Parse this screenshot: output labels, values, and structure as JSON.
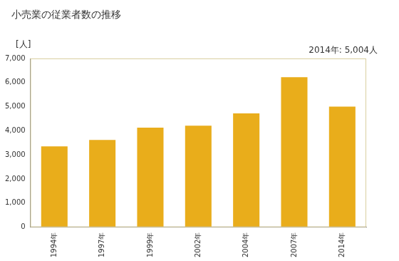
{
  "chart_data": {
    "type": "bar",
    "title": "小売業の従業者数の推移",
    "y_label": "[人]",
    "annotation": "2014年: 5,004人",
    "categories": [
      "1994年",
      "1997年",
      "1999年",
      "2002年",
      "2004年",
      "2007年",
      "2014年"
    ],
    "values": [
      3350,
      3620,
      4130,
      4210,
      4720,
      6220,
      5004
    ],
    "color": "#e9ad1b",
    "ylim": [
      0,
      7000
    ],
    "yticks": [
      0,
      {
        "value": 1000,
        "label": "1,000"
      },
      {
        "value": 2000,
        "label": "2,000"
      },
      {
        "value": 3000,
        "label": "3,000"
      },
      {
        "value": 4000,
        "label": "4,000"
      },
      {
        "value": 5000,
        "label": "5,000"
      },
      {
        "value": 6000,
        "label": "6,000"
      },
      {
        "value": 7000,
        "label": "7,000"
      }
    ],
    "grid": false
  }
}
